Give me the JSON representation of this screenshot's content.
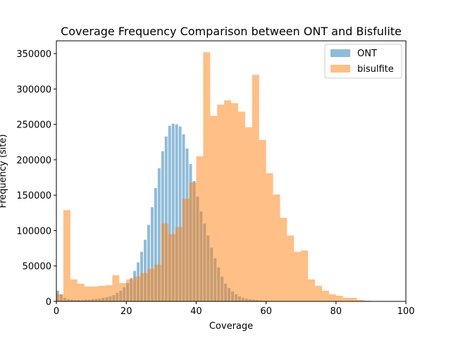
{
  "chart_data": {
    "type": "bar",
    "title": "Coverage Frequency Comparison between ONT and Bisfulite",
    "xlabel": "Coverage",
    "ylabel": "Frequency (site)",
    "xlim": [
      0,
      100
    ],
    "ylim": [
      0,
      368000
    ],
    "x_ticks": [
      "0",
      "20",
      "40",
      "60",
      "80",
      "100"
    ],
    "y_ticks": [
      "0",
      "50000",
      "100000",
      "150000",
      "200000",
      "250000",
      "300000",
      "350000"
    ],
    "x_tick_values": [
      0,
      20,
      40,
      60,
      80,
      100
    ],
    "y_tick_values": [
      0,
      50000,
      100000,
      150000,
      200000,
      250000,
      300000,
      350000
    ],
    "legend_position": "top-right",
    "grid": false,
    "series": [
      {
        "name": "ONT",
        "color": "#1f77b4",
        "alpha": 0.5,
        "bin_width": 0.8,
        "x": [
          0,
          1,
          2,
          3,
          4,
          5,
          6,
          7,
          8,
          9,
          10,
          11,
          12,
          13,
          14,
          15,
          16,
          17,
          18,
          19,
          20,
          21,
          22,
          23,
          24,
          25,
          26,
          27,
          28,
          29,
          30,
          31,
          32,
          33,
          34,
          35,
          36,
          37,
          38,
          39,
          40,
          41,
          42,
          43,
          44,
          45,
          46,
          47,
          48,
          49,
          50,
          51,
          52,
          53,
          54,
          55,
          56,
          57,
          58,
          59,
          60,
          61,
          62,
          63,
          64,
          65
        ],
        "values": [
          15000,
          10000,
          5000,
          3000,
          2500,
          2000,
          2000,
          2000,
          2500,
          2500,
          3000,
          3500,
          4000,
          5000,
          6000,
          7000,
          9000,
          12000,
          15000,
          20000,
          26000,
          33000,
          43000,
          55000,
          70000,
          87000,
          108000,
          133000,
          160000,
          188000,
          212000,
          233000,
          248000,
          251000,
          250000,
          247000,
          236000,
          216000,
          194000,
          170000,
          148000,
          127000,
          110000,
          93000,
          76000,
          61000,
          48000,
          35000,
          25000,
          19000,
          14000,
          10000,
          7000,
          5000,
          4000,
          3000,
          2500,
          2000,
          1500,
          1000,
          800,
          500,
          300,
          200,
          100,
          0
        ]
      },
      {
        "name": "bisulfite",
        "color": "#ff7f0e",
        "alpha": 0.5,
        "bin_width": 2,
        "x": [
          0,
          2,
          4,
          6,
          8,
          10,
          12,
          14,
          16,
          18,
          20,
          22,
          24,
          26,
          28,
          30,
          32,
          34,
          36,
          38,
          40,
          42,
          44,
          46,
          48,
          50,
          52,
          54,
          56,
          58,
          60,
          62,
          64,
          66,
          68,
          70,
          72,
          74,
          76,
          78,
          80,
          82,
          84,
          86,
          88,
          90,
          92,
          94,
          96
        ],
        "values": [
          10000,
          129000,
          31000,
          25000,
          21000,
          21000,
          22000,
          23000,
          37000,
          26000,
          31000,
          35000,
          40000,
          46000,
          52000,
          110000,
          95000,
          105000,
          145000,
          168000,
          205000,
          352000,
          262000,
          278000,
          284000,
          280000,
          268000,
          246000,
          320000,
          228000,
          181000,
          151000,
          118000,
          93000,
          70000,
          72000,
          31000,
          22000,
          15000,
          10000,
          8000,
          5000,
          5000,
          2000,
          1000,
          500,
          300,
          200,
          100
        ]
      }
    ]
  }
}
